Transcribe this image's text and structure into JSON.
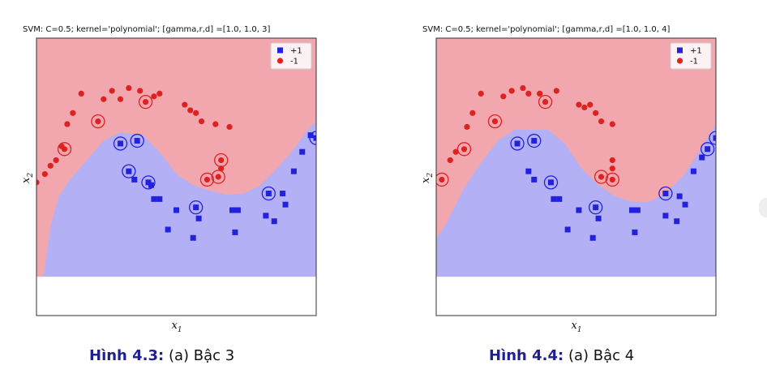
{
  "figures": [
    {
      "caption_label": "Hình 4.3:",
      "caption_text": "(a) Bậc 3"
    },
    {
      "caption_label": "Hình 4.4:",
      "caption_text": "(a) Bậc 4"
    }
  ],
  "chart_data": [
    {
      "type": "scatter",
      "title": "SVM: C=0.5; kernel='polynomial'; [gamma,r,d] =[1.0, 1.0, 3]",
      "xlabel": "x1",
      "ylabel": "x2",
      "xlim": [
        0,
        10
      ],
      "ylim": [
        0,
        10
      ],
      "grid": false,
      "legend_position": "top-right",
      "colors": {
        "positive": "#2222dd",
        "negative": "#dd2222",
        "positive_region": "#b3b0f5",
        "negative_region": "#f2a7ae",
        "uncovered_region": "#ffffff"
      },
      "region_uncovered_below_y": 1.4,
      "boundary": {
        "x": [
          0.0,
          0.25,
          0.5,
          0.8,
          1.2,
          1.8,
          2.4,
          3.0,
          3.8,
          4.4,
          5.0,
          5.6,
          6.2,
          6.8,
          7.4,
          8.0,
          8.6,
          9.2,
          9.7,
          10.0
        ],
        "y": [
          1.4,
          1.4,
          3.2,
          4.3,
          4.9,
          5.6,
          6.3,
          6.6,
          6.5,
          5.9,
          5.1,
          4.7,
          4.5,
          4.35,
          4.4,
          4.7,
          5.3,
          6.0,
          6.7,
          7.0
        ]
      },
      "series": [
        {
          "name": "+1",
          "marker": "square",
          "points": [
            {
              "x": 3.0,
              "y": 6.2,
              "sv": true
            },
            {
              "x": 3.6,
              "y": 6.3,
              "sv": true
            },
            {
              "x": 3.3,
              "y": 5.2,
              "sv": true
            },
            {
              "x": 3.5,
              "y": 4.9,
              "sv": false
            },
            {
              "x": 4.0,
              "y": 4.8,
              "sv": true
            },
            {
              "x": 4.1,
              "y": 4.7,
              "sv": false
            },
            {
              "x": 4.2,
              "y": 4.2,
              "sv": false
            },
            {
              "x": 4.4,
              "y": 4.2,
              "sv": false
            },
            {
              "x": 5.0,
              "y": 3.8,
              "sv": false
            },
            {
              "x": 5.7,
              "y": 3.9,
              "sv": true
            },
            {
              "x": 5.8,
              "y": 3.5,
              "sv": false
            },
            {
              "x": 4.7,
              "y": 3.1,
              "sv": false
            },
            {
              "x": 5.6,
              "y": 2.8,
              "sv": false
            },
            {
              "x": 7.0,
              "y": 3.8,
              "sv": false
            },
            {
              "x": 7.2,
              "y": 3.8,
              "sv": false
            },
            {
              "x": 7.1,
              "y": 3.0,
              "sv": false
            },
            {
              "x": 8.3,
              "y": 4.4,
              "sv": true
            },
            {
              "x": 8.8,
              "y": 4.4,
              "sv": false
            },
            {
              "x": 8.9,
              "y": 4.0,
              "sv": false
            },
            {
              "x": 8.2,
              "y": 3.6,
              "sv": false
            },
            {
              "x": 8.5,
              "y": 3.4,
              "sv": false
            },
            {
              "x": 9.2,
              "y": 5.2,
              "sv": false
            },
            {
              "x": 9.5,
              "y": 5.9,
              "sv": false
            },
            {
              "x": 9.8,
              "y": 6.5,
              "sv": false
            },
            {
              "x": 10.0,
              "y": 6.4,
              "sv": true
            }
          ]
        },
        {
          "name": "-1",
          "marker": "circle",
          "points": [
            {
              "x": 0.3,
              "y": 5.1,
              "sv": false
            },
            {
              "x": 0.5,
              "y": 5.4,
              "sv": false
            },
            {
              "x": 0.7,
              "y": 5.6,
              "sv": false
            },
            {
              "x": 1.0,
              "y": 6.0,
              "sv": true
            },
            {
              "x": 0.9,
              "y": 6.1,
              "sv": false
            },
            {
              "x": 1.1,
              "y": 6.9,
              "sv": false
            },
            {
              "x": 1.3,
              "y": 7.3,
              "sv": false
            },
            {
              "x": 1.6,
              "y": 8.0,
              "sv": false
            },
            {
              "x": 2.2,
              "y": 7.0,
              "sv": true
            },
            {
              "x": 2.4,
              "y": 7.8,
              "sv": false
            },
            {
              "x": 2.7,
              "y": 8.1,
              "sv": false
            },
            {
              "x": 3.0,
              "y": 7.8,
              "sv": false
            },
            {
              "x": 3.3,
              "y": 8.2,
              "sv": false
            },
            {
              "x": 3.7,
              "y": 8.1,
              "sv": false
            },
            {
              "x": 3.9,
              "y": 7.7,
              "sv": true
            },
            {
              "x": 4.2,
              "y": 7.9,
              "sv": false
            },
            {
              "x": 4.4,
              "y": 8.0,
              "sv": false
            },
            {
              "x": 5.3,
              "y": 7.6,
              "sv": false
            },
            {
              "x": 5.5,
              "y": 7.4,
              "sv": false
            },
            {
              "x": 5.7,
              "y": 7.3,
              "sv": false
            },
            {
              "x": 5.9,
              "y": 7.0,
              "sv": false
            },
            {
              "x": 6.4,
              "y": 6.9,
              "sv": false
            },
            {
              "x": 6.6,
              "y": 5.6,
              "sv": true
            },
            {
              "x": 6.6,
              "y": 5.3,
              "sv": false
            },
            {
              "x": 6.5,
              "y": 5.0,
              "sv": true
            },
            {
              "x": 6.1,
              "y": 4.9,
              "sv": true
            },
            {
              "x": 0.0,
              "y": 4.8,
              "sv": false
            },
            {
              "x": 6.9,
              "y": 6.8,
              "sv": false
            }
          ]
        }
      ]
    },
    {
      "type": "scatter",
      "title": "SVM: C=0.5; kernel='polynomial'; [gamma,r,d] =[1.0, 1.0, 4]",
      "xlabel": "x1",
      "ylabel": "x2",
      "xlim": [
        0,
        10
      ],
      "ylim": [
        0,
        10
      ],
      "grid": false,
      "legend_position": "top-right",
      "colors": {
        "positive": "#2222dd",
        "negative": "#dd2222",
        "positive_region": "#b3b0f5",
        "negative_region": "#f2a7ae",
        "uncovered_region": "#ffffff"
      },
      "region_uncovered_below_y": 1.4,
      "boundary": {
        "x": [
          0.0,
          0.3,
          0.6,
          1.0,
          1.6,
          2.2,
          2.8,
          3.4,
          4.0,
          4.6,
          5.2,
          5.8,
          6.4,
          7.0,
          7.6,
          8.2,
          8.8,
          9.4,
          10.0
        ],
        "y": [
          2.8,
          3.2,
          3.8,
          4.6,
          5.5,
          6.3,
          6.7,
          6.7,
          6.7,
          6.2,
          5.3,
          4.7,
          4.3,
          4.1,
          4.1,
          4.4,
          5.0,
          5.9,
          6.9
        ]
      },
      "series": [
        {
          "name": "+1",
          "marker": "square",
          "points": [
            {
              "x": 2.9,
              "y": 6.2,
              "sv": true
            },
            {
              "x": 3.5,
              "y": 6.3,
              "sv": true
            },
            {
              "x": 3.3,
              "y": 5.2,
              "sv": false
            },
            {
              "x": 3.5,
              "y": 4.9,
              "sv": false
            },
            {
              "x": 4.1,
              "y": 4.8,
              "sv": true
            },
            {
              "x": 4.2,
              "y": 4.2,
              "sv": false
            },
            {
              "x": 4.4,
              "y": 4.2,
              "sv": false
            },
            {
              "x": 5.1,
              "y": 3.8,
              "sv": false
            },
            {
              "x": 5.7,
              "y": 3.9,
              "sv": true
            },
            {
              "x": 5.8,
              "y": 3.5,
              "sv": false
            },
            {
              "x": 4.7,
              "y": 3.1,
              "sv": false
            },
            {
              "x": 5.6,
              "y": 2.8,
              "sv": false
            },
            {
              "x": 7.0,
              "y": 3.8,
              "sv": false
            },
            {
              "x": 7.2,
              "y": 3.8,
              "sv": false
            },
            {
              "x": 7.1,
              "y": 3.0,
              "sv": false
            },
            {
              "x": 8.2,
              "y": 4.4,
              "sv": true
            },
            {
              "x": 8.7,
              "y": 4.3,
              "sv": false
            },
            {
              "x": 8.9,
              "y": 4.0,
              "sv": false
            },
            {
              "x": 8.2,
              "y": 3.6,
              "sv": false
            },
            {
              "x": 8.6,
              "y": 3.4,
              "sv": false
            },
            {
              "x": 9.2,
              "y": 5.2,
              "sv": false
            },
            {
              "x": 9.5,
              "y": 5.7,
              "sv": false
            },
            {
              "x": 9.7,
              "y": 6.0,
              "sv": true
            },
            {
              "x": 10.0,
              "y": 6.4,
              "sv": true
            }
          ]
        },
        {
          "name": "-1",
          "marker": "circle",
          "points": [
            {
              "x": 0.2,
              "y": 4.9,
              "sv": true
            },
            {
              "x": 0.5,
              "y": 5.6,
              "sv": false
            },
            {
              "x": 0.7,
              "y": 5.9,
              "sv": false
            },
            {
              "x": 1.0,
              "y": 6.0,
              "sv": true
            },
            {
              "x": 1.1,
              "y": 6.8,
              "sv": false
            },
            {
              "x": 1.3,
              "y": 7.3,
              "sv": false
            },
            {
              "x": 1.6,
              "y": 8.0,
              "sv": false
            },
            {
              "x": 2.1,
              "y": 7.0,
              "sv": true
            },
            {
              "x": 2.4,
              "y": 7.9,
              "sv": false
            },
            {
              "x": 2.7,
              "y": 8.1,
              "sv": false
            },
            {
              "x": 3.1,
              "y": 8.2,
              "sv": false
            },
            {
              "x": 3.3,
              "y": 8.0,
              "sv": false
            },
            {
              "x": 3.7,
              "y": 8.0,
              "sv": false
            },
            {
              "x": 3.9,
              "y": 7.7,
              "sv": true
            },
            {
              "x": 4.3,
              "y": 8.1,
              "sv": false
            },
            {
              "x": 5.1,
              "y": 7.6,
              "sv": false
            },
            {
              "x": 5.3,
              "y": 7.5,
              "sv": false
            },
            {
              "x": 5.5,
              "y": 7.6,
              "sv": false
            },
            {
              "x": 5.7,
              "y": 7.3,
              "sv": false
            },
            {
              "x": 5.9,
              "y": 7.0,
              "sv": false
            },
            {
              "x": 6.3,
              "y": 6.9,
              "sv": false
            },
            {
              "x": 6.3,
              "y": 5.6,
              "sv": false
            },
            {
              "x": 6.3,
              "y": 5.3,
              "sv": false
            },
            {
              "x": 6.3,
              "y": 4.9,
              "sv": true
            },
            {
              "x": 5.9,
              "y": 5.0,
              "sv": true
            }
          ]
        }
      ]
    }
  ]
}
